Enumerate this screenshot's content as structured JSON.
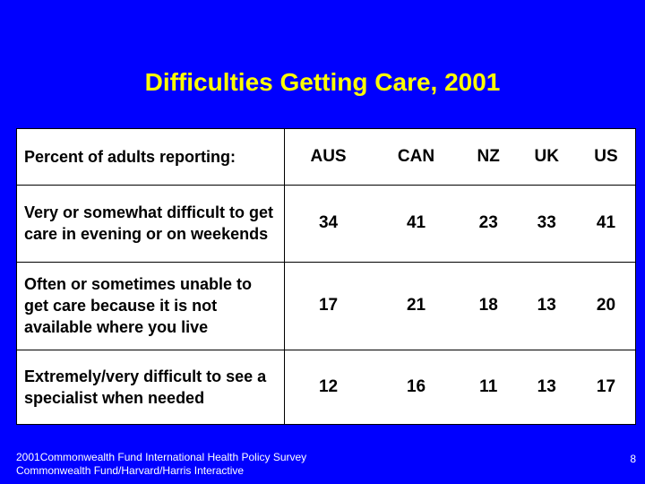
{
  "title": "Difficulties Getting Care, 2001",
  "chart_data": {
    "type": "table",
    "title": "Difficulties Getting Care, 2001",
    "header_label": "Percent of adults reporting:",
    "columns": [
      "AUS",
      "CAN",
      "NZ",
      "UK",
      "US"
    ],
    "rows": [
      {
        "label": "Very or somewhat difficult to get care in evening or on weekends",
        "values": [
          34,
          41,
          23,
          33,
          41
        ]
      },
      {
        "label": "Often or sometimes unable to get care because it is not available where you live",
        "values": [
          17,
          21,
          18,
          13,
          20
        ]
      },
      {
        "label": "Extremely/very difficult to see a specialist when needed",
        "values": [
          12,
          16,
          11,
          13,
          17
        ]
      }
    ]
  },
  "footer": {
    "line1": "2001Commonwealth Fund International Health Policy Survey",
    "line2": "Commonwealth Fund/Harvard/Harris Interactive"
  },
  "page_number": "8",
  "colors": {
    "background": "#0000ff",
    "title": "#ffff00",
    "table_bg": "#ffffff",
    "footer_text": "#ffffff"
  }
}
